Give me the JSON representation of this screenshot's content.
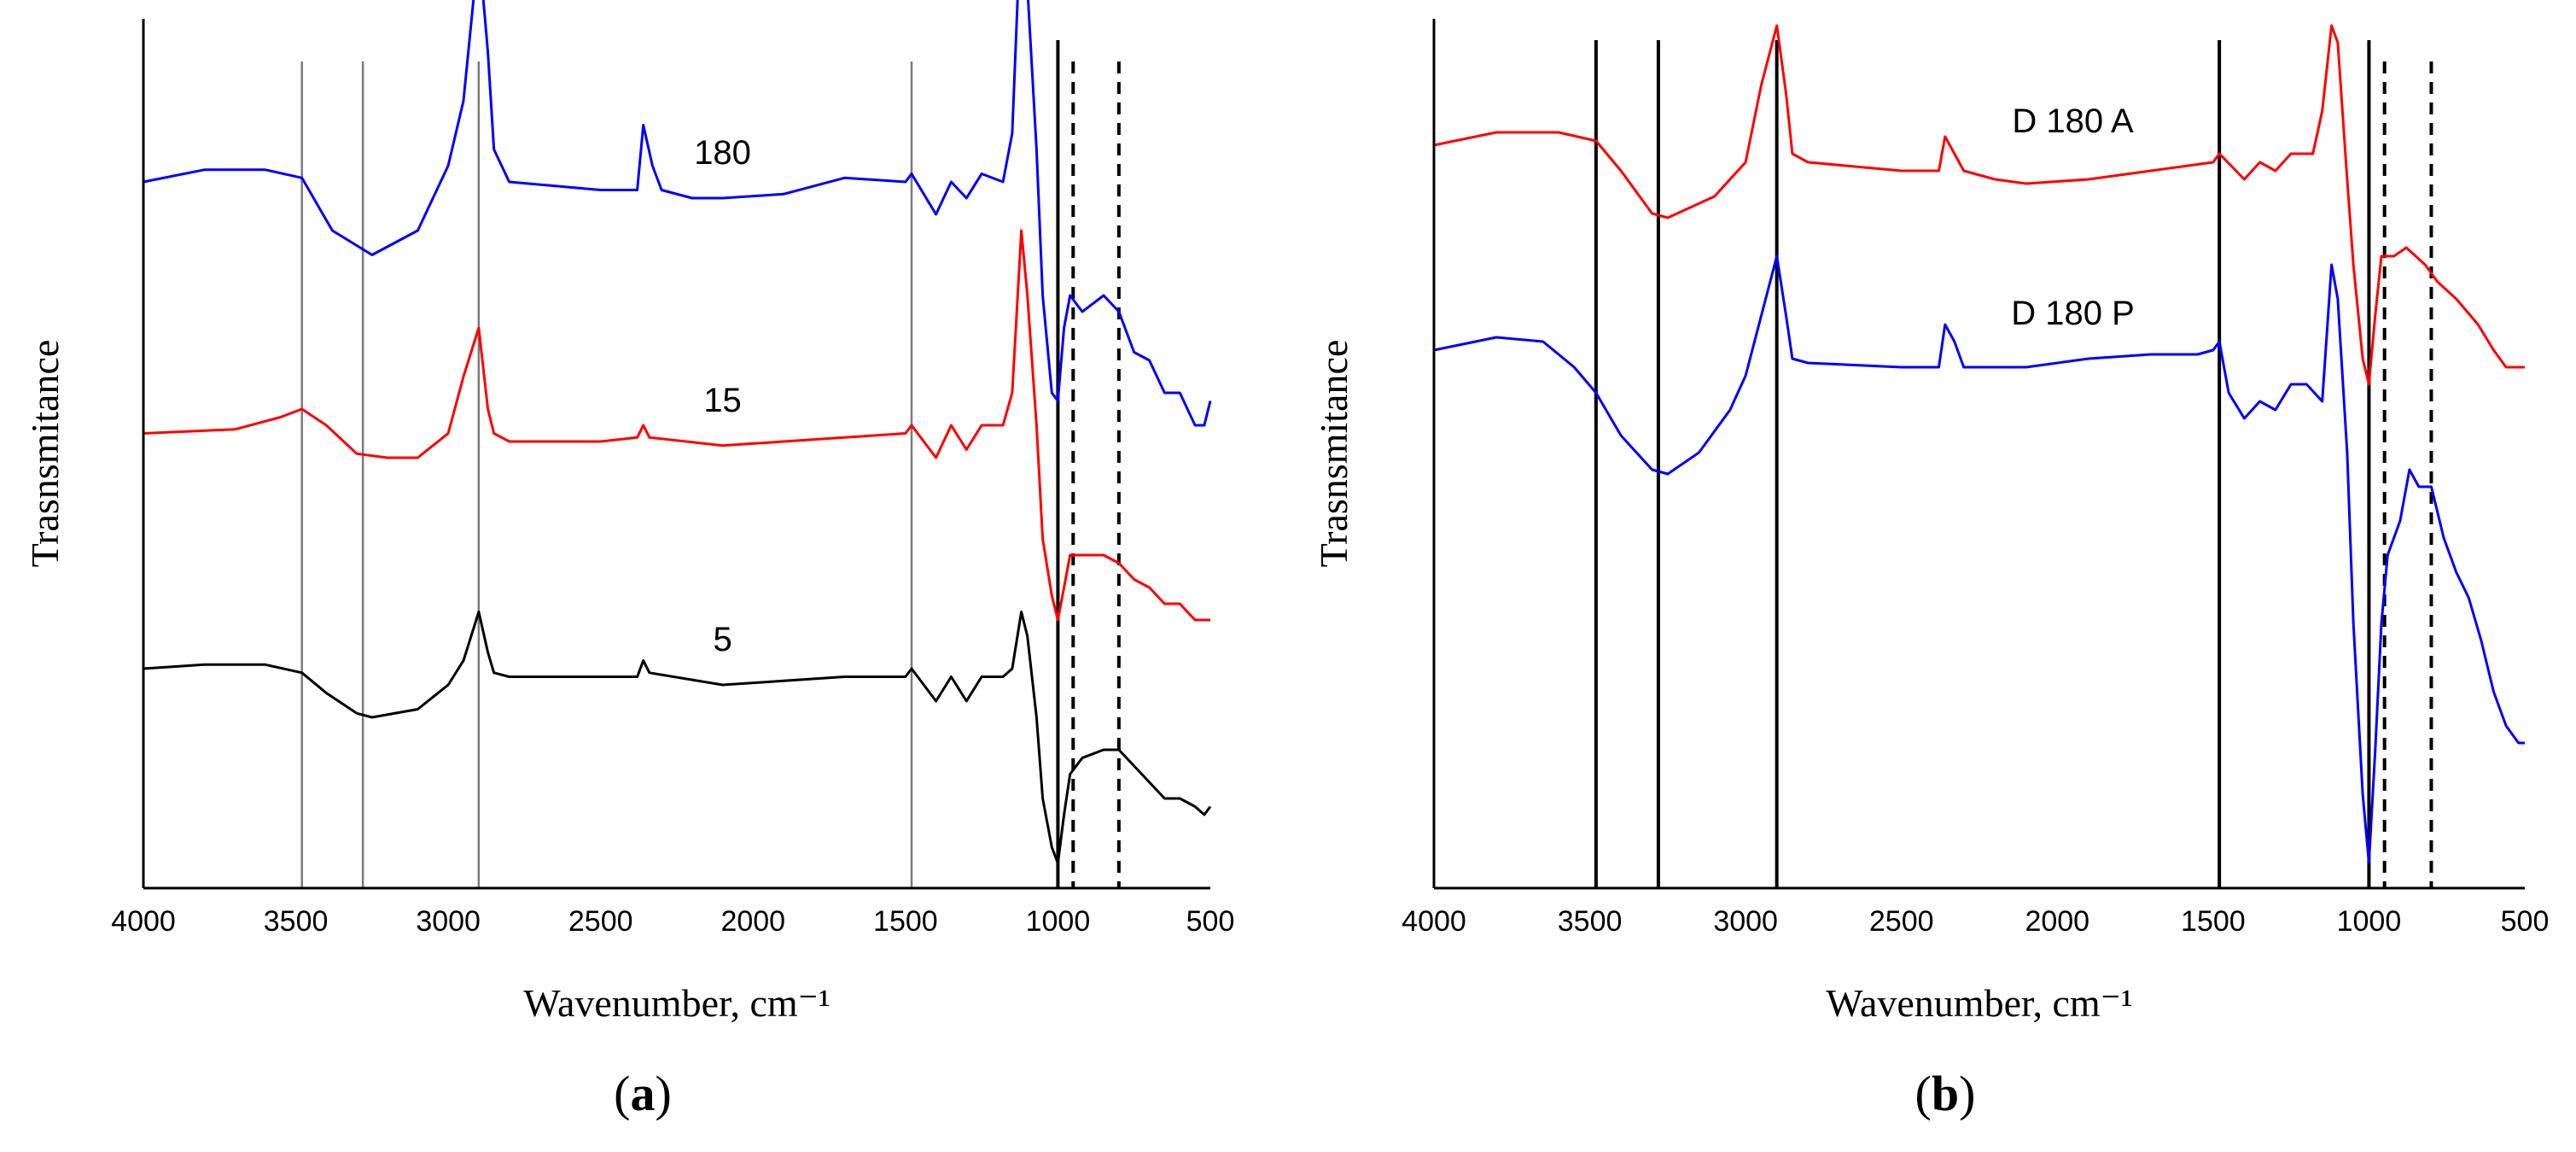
{
  "chart_data": [
    {
      "panel": "a",
      "type": "line",
      "panel_label": "a",
      "xlabel": "Wavenumber, cm⁻¹",
      "ylabel": "Trasnsmitance",
      "xlim": [
        4000,
        500
      ],
      "x_ticks": [
        4000,
        3500,
        3000,
        2500,
        2000,
        1500,
        1000,
        500
      ],
      "y_ticks": [],
      "reference_lines": {
        "grey_solid": [
          3480,
          3280,
          2900,
          1480
        ],
        "black_solid": [
          1000
        ],
        "black_dashed": [
          950,
          800
        ]
      },
      "series": [
        {
          "name": "180",
          "color": "#0000ff",
          "label_at": 2100,
          "points": [
            [
              4000,
              0.86
            ],
            [
              3800,
              0.875
            ],
            [
              3600,
              0.875
            ],
            [
              3480,
              0.865
            ],
            [
              3380,
              0.8
            ],
            [
              3250,
              0.77
            ],
            [
              3100,
              0.8
            ],
            [
              3000,
              0.88
            ],
            [
              2950,
              0.96
            ],
            [
              2900,
              1.15
            ],
            [
              2870,
              1.02
            ],
            [
              2850,
              0.9
            ],
            [
              2800,
              0.86
            ],
            [
              2500,
              0.85
            ],
            [
              2380,
              0.85
            ],
            [
              2360,
              0.93
            ],
            [
              2330,
              0.88
            ],
            [
              2300,
              0.85
            ],
            [
              2200,
              0.84
            ],
            [
              2100,
              0.84
            ],
            [
              1900,
              0.845
            ],
            [
              1700,
              0.865
            ],
            [
              1500,
              0.86
            ],
            [
              1480,
              0.87
            ],
            [
              1400,
              0.82
            ],
            [
              1350,
              0.86
            ],
            [
              1300,
              0.84
            ],
            [
              1250,
              0.87
            ],
            [
              1180,
              0.86
            ],
            [
              1150,
              0.92
            ],
            [
              1120,
              1.2
            ],
            [
              1100,
              1.1
            ],
            [
              1070,
              0.9
            ],
            [
              1050,
              0.72
            ],
            [
              1020,
              0.6
            ],
            [
              1000,
              0.59
            ],
            [
              980,
              0.68
            ],
            [
              960,
              0.72
            ],
            [
              920,
              0.7
            ],
            [
              850,
              0.72
            ],
            [
              800,
              0.7
            ],
            [
              750,
              0.65
            ],
            [
              700,
              0.64
            ],
            [
              650,
              0.6
            ],
            [
              600,
              0.6
            ],
            [
              550,
              0.56
            ],
            [
              520,
              0.56
            ],
            [
              500,
              0.59
            ]
          ]
        },
        {
          "name": "15",
          "color": "#ff0000",
          "label_at": 2100,
          "points": [
            [
              4000,
              0.55
            ],
            [
              3700,
              0.555
            ],
            [
              3550,
              0.57
            ],
            [
              3480,
              0.58
            ],
            [
              3400,
              0.56
            ],
            [
              3300,
              0.525
            ],
            [
              3200,
              0.52
            ],
            [
              3100,
              0.52
            ],
            [
              3000,
              0.55
            ],
            [
              2950,
              0.62
            ],
            [
              2900,
              0.68
            ],
            [
              2870,
              0.58
            ],
            [
              2850,
              0.55
            ],
            [
              2800,
              0.54
            ],
            [
              2500,
              0.54
            ],
            [
              2380,
              0.545
            ],
            [
              2360,
              0.56
            ],
            [
              2340,
              0.545
            ],
            [
              2100,
              0.535
            ],
            [
              1900,
              0.54
            ],
            [
              1700,
              0.545
            ],
            [
              1500,
              0.55
            ],
            [
              1480,
              0.56
            ],
            [
              1400,
              0.52
            ],
            [
              1350,
              0.56
            ],
            [
              1300,
              0.53
            ],
            [
              1250,
              0.56
            ],
            [
              1180,
              0.56
            ],
            [
              1150,
              0.6
            ],
            [
              1120,
              0.8
            ],
            [
              1100,
              0.72
            ],
            [
              1070,
              0.56
            ],
            [
              1050,
              0.42
            ],
            [
              1020,
              0.35
            ],
            [
              1000,
              0.32
            ],
            [
              980,
              0.36
            ],
            [
              960,
              0.4
            ],
            [
              920,
              0.4
            ],
            [
              850,
              0.4
            ],
            [
              800,
              0.39
            ],
            [
              750,
              0.37
            ],
            [
              700,
              0.36
            ],
            [
              650,
              0.34
            ],
            [
              600,
              0.34
            ],
            [
              550,
              0.32
            ],
            [
              500,
              0.32
            ]
          ]
        },
        {
          "name": "5",
          "color": "#000000",
          "label_at": 2100,
          "points": [
            [
              4000,
              0.26
            ],
            [
              3800,
              0.265
            ],
            [
              3600,
              0.265
            ],
            [
              3480,
              0.255
            ],
            [
              3400,
              0.23
            ],
            [
              3300,
              0.205
            ],
            [
              3250,
              0.2
            ],
            [
              3100,
              0.21
            ],
            [
              3000,
              0.24
            ],
            [
              2950,
              0.27
            ],
            [
              2900,
              0.33
            ],
            [
              2870,
              0.28
            ],
            [
              2850,
              0.255
            ],
            [
              2800,
              0.25
            ],
            [
              2500,
              0.25
            ],
            [
              2380,
              0.25
            ],
            [
              2360,
              0.27
            ],
            [
              2340,
              0.255
            ],
            [
              2100,
              0.24
            ],
            [
              1900,
              0.245
            ],
            [
              1700,
              0.25
            ],
            [
              1500,
              0.25
            ],
            [
              1480,
              0.26
            ],
            [
              1400,
              0.22
            ],
            [
              1350,
              0.25
            ],
            [
              1300,
              0.22
            ],
            [
              1250,
              0.25
            ],
            [
              1180,
              0.25
            ],
            [
              1150,
              0.26
            ],
            [
              1120,
              0.33
            ],
            [
              1100,
              0.3
            ],
            [
              1070,
              0.2
            ],
            [
              1050,
              0.1
            ],
            [
              1020,
              0.04
            ],
            [
              1000,
              0.02
            ],
            [
              980,
              0.08
            ],
            [
              960,
              0.13
            ],
            [
              920,
              0.15
            ],
            [
              850,
              0.16
            ],
            [
              800,
              0.16
            ],
            [
              750,
              0.14
            ],
            [
              700,
              0.12
            ],
            [
              650,
              0.1
            ],
            [
              600,
              0.1
            ],
            [
              550,
              0.09
            ],
            [
              520,
              0.08
            ],
            [
              500,
              0.09
            ]
          ]
        }
      ]
    },
    {
      "panel": "b",
      "type": "line",
      "panel_label": "b",
      "xlabel": "Wavenumber, cm⁻¹",
      "ylabel": "Trasnsmitance",
      "xlim": [
        4000,
        500
      ],
      "x_ticks": [
        4000,
        3500,
        3000,
        2500,
        2000,
        1500,
        1000,
        500
      ],
      "y_ticks": [],
      "reference_lines": {
        "black_solid": [
          3480,
          3280,
          2900,
          1480,
          1000
        ],
        "black_dashed": [
          950,
          800
        ]
      },
      "series": [
        {
          "name": "D 180 A",
          "color": "#ff0000",
          "label_at": 1950,
          "points": [
            [
              4000,
              0.86
            ],
            [
              3800,
              0.875
            ],
            [
              3600,
              0.875
            ],
            [
              3480,
              0.865
            ],
            [
              3400,
              0.83
            ],
            [
              3300,
              0.78
            ],
            [
              3250,
              0.775
            ],
            [
              3100,
              0.8
            ],
            [
              3000,
              0.84
            ],
            [
              2950,
              0.93
            ],
            [
              2900,
              1.0
            ],
            [
              2870,
              0.92
            ],
            [
              2850,
              0.85
            ],
            [
              2800,
              0.84
            ],
            [
              2500,
              0.83
            ],
            [
              2380,
              0.83
            ],
            [
              2360,
              0.87
            ],
            [
              2330,
              0.85
            ],
            [
              2300,
              0.83
            ],
            [
              2200,
              0.82
            ],
            [
              2100,
              0.815
            ],
            [
              1900,
              0.82
            ],
            [
              1700,
              0.83
            ],
            [
              1500,
              0.84
            ],
            [
              1480,
              0.85
            ],
            [
              1400,
              0.82
            ],
            [
              1350,
              0.84
            ],
            [
              1300,
              0.83
            ],
            [
              1250,
              0.85
            ],
            [
              1180,
              0.85
            ],
            [
              1150,
              0.9
            ],
            [
              1120,
              1.0
            ],
            [
              1100,
              0.98
            ],
            [
              1070,
              0.82
            ],
            [
              1050,
              0.72
            ],
            [
              1020,
              0.61
            ],
            [
              1000,
              0.58
            ],
            [
              980,
              0.66
            ],
            [
              960,
              0.73
            ],
            [
              920,
              0.73
            ],
            [
              880,
              0.74
            ],
            [
              820,
              0.72
            ],
            [
              780,
              0.7
            ],
            [
              720,
              0.68
            ],
            [
              650,
              0.65
            ],
            [
              600,
              0.62
            ],
            [
              560,
              0.6
            ],
            [
              500,
              0.6
            ]
          ]
        },
        {
          "name": "D 180 P",
          "color": "#0000ff",
          "label_at": 1950,
          "points": [
            [
              4000,
              0.62
            ],
            [
              3800,
              0.635
            ],
            [
              3650,
              0.63
            ],
            [
              3550,
              0.6
            ],
            [
              3480,
              0.57
            ],
            [
              3400,
              0.52
            ],
            [
              3300,
              0.48
            ],
            [
              3250,
              0.475
            ],
            [
              3150,
              0.5
            ],
            [
              3050,
              0.55
            ],
            [
              3000,
              0.59
            ],
            [
              2950,
              0.66
            ],
            [
              2900,
              0.73
            ],
            [
              2870,
              0.66
            ],
            [
              2850,
              0.61
            ],
            [
              2800,
              0.605
            ],
            [
              2500,
              0.6
            ],
            [
              2380,
              0.6
            ],
            [
              2360,
              0.65
            ],
            [
              2330,
              0.63
            ],
            [
              2300,
              0.6
            ],
            [
              2200,
              0.6
            ],
            [
              2100,
              0.6
            ],
            [
              1900,
              0.61
            ],
            [
              1700,
              0.615
            ],
            [
              1550,
              0.615
            ],
            [
              1500,
              0.62
            ],
            [
              1480,
              0.63
            ],
            [
              1450,
              0.57
            ],
            [
              1400,
              0.54
            ],
            [
              1350,
              0.56
            ],
            [
              1300,
              0.55
            ],
            [
              1250,
              0.58
            ],
            [
              1200,
              0.58
            ],
            [
              1150,
              0.56
            ],
            [
              1120,
              0.72
            ],
            [
              1100,
              0.68
            ],
            [
              1070,
              0.5
            ],
            [
              1050,
              0.3
            ],
            [
              1020,
              0.1
            ],
            [
              1000,
              0.02
            ],
            [
              980,
              0.15
            ],
            [
              960,
              0.3
            ],
            [
              940,
              0.38
            ],
            [
              900,
              0.42
            ],
            [
              870,
              0.48
            ],
            [
              840,
              0.46
            ],
            [
              800,
              0.46
            ],
            [
              760,
              0.4
            ],
            [
              720,
              0.36
            ],
            [
              680,
              0.33
            ],
            [
              640,
              0.28
            ],
            [
              600,
              0.22
            ],
            [
              560,
              0.18
            ],
            [
              520,
              0.16
            ],
            [
              500,
              0.16
            ]
          ]
        }
      ]
    }
  ]
}
